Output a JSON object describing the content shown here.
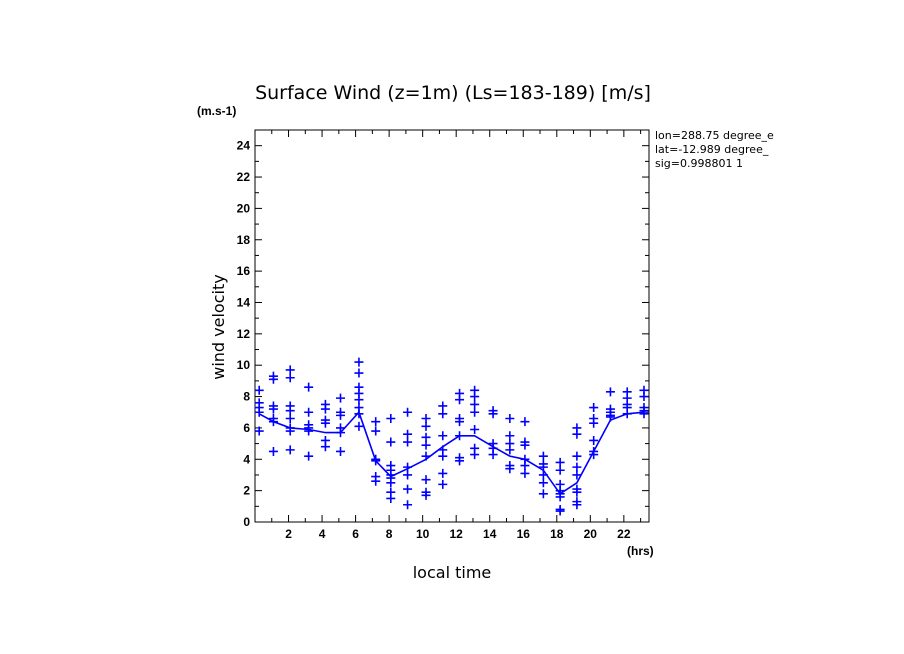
{
  "chart_data": {
    "type": "scatter",
    "title": "Surface Wind (z=1m) (Ls=183-189) [m/s]",
    "xlabel": "local time",
    "ylabel": "wind velocity",
    "x_unit": "(hrs)",
    "y_unit": "(m.s-1)",
    "xlim": [
      0,
      23.5
    ],
    "ylim": [
      0,
      25
    ],
    "xticks": [
      2,
      4,
      6,
      8,
      10,
      12,
      14,
      16,
      18,
      20,
      22
    ],
    "yticks": [
      0,
      2,
      4,
      6,
      8,
      10,
      12,
      14,
      16,
      18,
      20,
      22,
      24
    ],
    "grid": false,
    "info": [
      "lon=288.75 degree_e",
      "lat=-12.989 degree_",
      "sig=0.998801 1"
    ],
    "color": "#0000ff",
    "series": [
      {
        "kind": "scatter",
        "points": [
          {
            "x": 0.25,
            "y": [
              8.4,
              7.6,
              7.3,
              7.0,
              5.8
            ]
          },
          {
            "x": 1.1,
            "y": [
              9.3,
              9.1,
              7.4,
              7.2,
              6.6,
              6.4,
              4.5
            ]
          },
          {
            "x": 2.1,
            "y": [
              9.7,
              9.2,
              7.4,
              7.1,
              6.6,
              6.0,
              5.8,
              4.6
            ]
          },
          {
            "x": 3.2,
            "y": [
              8.6,
              7.0,
              6.2,
              6.0,
              5.8,
              4.2
            ]
          },
          {
            "x": 4.2,
            "y": [
              7.5,
              7.2,
              6.5,
              6.3,
              5.2,
              4.8
            ]
          },
          {
            "x": 5.1,
            "y": [
              7.9,
              7.0,
              6.8,
              6.0,
              5.7,
              4.5
            ]
          },
          {
            "x": 6.2,
            "y": [
              10.2,
              9.5,
              8.6,
              8.2,
              7.8,
              7.3,
              6.9,
              6.1
            ]
          },
          {
            "x": 7.2,
            "y": [
              6.4,
              5.8,
              4.0,
              3.9,
              2.9,
              2.6
            ]
          },
          {
            "x": 8.1,
            "y": [
              6.6,
              5.1,
              3.6,
              3.3,
              3.0,
              2.8,
              2.5,
              1.9,
              1.5
            ]
          },
          {
            "x": 9.1,
            "y": [
              7.0,
              5.6,
              5.1,
              3.5,
              3.0,
              2.1,
              1.1
            ]
          },
          {
            "x": 10.2,
            "y": [
              6.6,
              6.1,
              5.4,
              4.9,
              4.2,
              2.7,
              1.9,
              1.7
            ]
          },
          {
            "x": 11.2,
            "y": [
              7.4,
              6.9,
              5.5,
              4.6,
              4.2,
              3.1,
              2.4
            ]
          },
          {
            "x": 12.2,
            "y": [
              8.2,
              7.8,
              6.6,
              6.4,
              5.5,
              4.1,
              3.9
            ]
          },
          {
            "x": 13.1,
            "y": [
              8.4,
              8.0,
              7.5,
              7.0,
              5.9,
              4.7,
              4.3
            ]
          },
          {
            "x": 14.2,
            "y": [
              7.1,
              6.9,
              5.0,
              4.7,
              4.3
            ]
          },
          {
            "x": 15.2,
            "y": [
              6.6,
              5.5,
              5.0,
              4.6,
              3.6,
              3.4
            ]
          },
          {
            "x": 16.1,
            "y": [
              6.4,
              5.1,
              4.9,
              4.0,
              3.6,
              3.1
            ]
          },
          {
            "x": 17.2,
            "y": [
              4.2,
              3.7,
              3.5,
              3.0,
              2.5,
              1.8
            ]
          },
          {
            "x": 18.2,
            "y": [
              3.8,
              3.3,
              2.4,
              2.0,
              1.8,
              1.6,
              0.8,
              0.7
            ]
          },
          {
            "x": 19.2,
            "y": [
              6.0,
              5.6,
              4.2,
              3.5,
              3.0,
              2.1,
              1.9,
              1.3,
              1.1
            ]
          },
          {
            "x": 20.2,
            "y": [
              7.3,
              6.6,
              6.3,
              5.2,
              4.5,
              4.3
            ]
          },
          {
            "x": 21.2,
            "y": [
              8.3,
              7.2,
              7.0,
              6.8,
              6.7
            ]
          },
          {
            "x": 22.2,
            "y": [
              8.3,
              7.9,
              7.5,
              7.3,
              6.9
            ]
          },
          {
            "x": 23.2,
            "y": [
              8.4,
              8.0,
              7.3,
              7.1,
              6.9
            ]
          }
        ]
      },
      {
        "kind": "line",
        "x": [
          0.25,
          1.1,
          2.1,
          3.2,
          4.2,
          5.1,
          6.2,
          7.2,
          8.1,
          9.1,
          10.2,
          11.2,
          12.2,
          13.1,
          14.2,
          15.2,
          16.1,
          17.2,
          18.2,
          19.2,
          20.2,
          21.2,
          22.2,
          23.2
        ],
        "y": [
          6.9,
          6.4,
          6.0,
          5.9,
          5.7,
          5.7,
          7.0,
          3.9,
          2.9,
          3.4,
          4.0,
          4.8,
          5.5,
          5.5,
          4.8,
          4.2,
          4.0,
          3.3,
          1.8,
          2.5,
          4.5,
          6.5,
          6.9,
          7.0
        ]
      }
    ]
  }
}
